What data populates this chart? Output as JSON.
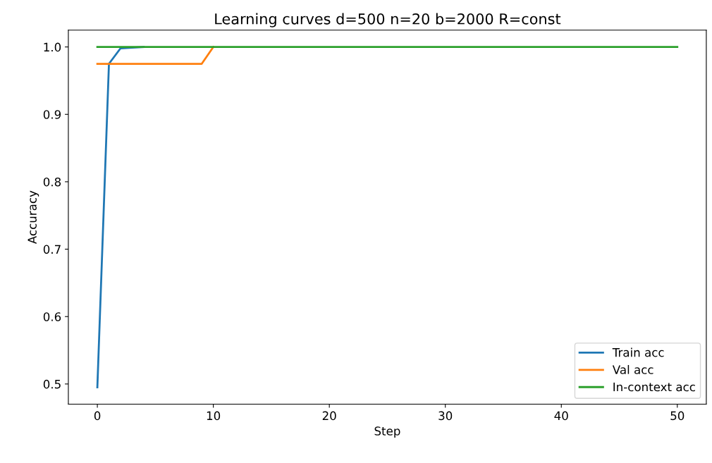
{
  "chart_data": {
    "type": "line",
    "title": "Learning curves d=500 n=20 b=2000 R=const",
    "xlabel": "Step",
    "ylabel": "Accuracy",
    "x": [
      0,
      1,
      2,
      3,
      4,
      5,
      6,
      7,
      8,
      9,
      10,
      11,
      12,
      13,
      14,
      15,
      16,
      17,
      18,
      19,
      20,
      21,
      22,
      23,
      24,
      25,
      26,
      27,
      28,
      29,
      30,
      31,
      32,
      33,
      34,
      35,
      36,
      37,
      38,
      39,
      40,
      41,
      42,
      43,
      44,
      45,
      46,
      47,
      48,
      49,
      50
    ],
    "series": [
      {
        "name": "Train acc",
        "color": "#1f77b4",
        "values": [
          0.495,
          0.975,
          0.998,
          0.999,
          1.0,
          null,
          null,
          null,
          null,
          null,
          null,
          null,
          null,
          null,
          null,
          null,
          null,
          null,
          null,
          null,
          null,
          null,
          null,
          null,
          null,
          null,
          null,
          null,
          null,
          null,
          null,
          null,
          null,
          null,
          null,
          null,
          null,
          null,
          null,
          null,
          null,
          null,
          null,
          null,
          null,
          null,
          null,
          null,
          null,
          null,
          null
        ]
      },
      {
        "name": "Val acc",
        "color": "#ff7f0e",
        "values": [
          0.975,
          0.975,
          0.975,
          0.975,
          0.975,
          0.975,
          0.975,
          0.975,
          0.975,
          0.975,
          1.0,
          null,
          null,
          null,
          null,
          null,
          null,
          null,
          null,
          null,
          null,
          null,
          null,
          null,
          null,
          null,
          null,
          null,
          null,
          null,
          null,
          null,
          null,
          null,
          null,
          null,
          null,
          null,
          null,
          null,
          null,
          null,
          null,
          null,
          null,
          null,
          null,
          null,
          null,
          null,
          null
        ]
      },
      {
        "name": "In-context acc",
        "color": "#2ca02c",
        "values": [
          1.0,
          1.0,
          1.0,
          1.0,
          1.0,
          1.0,
          1.0,
          1.0,
          1.0,
          1.0,
          1.0,
          1.0,
          1.0,
          1.0,
          1.0,
          1.0,
          1.0,
          1.0,
          1.0,
          1.0,
          1.0,
          1.0,
          1.0,
          1.0,
          1.0,
          1.0,
          1.0,
          1.0,
          1.0,
          1.0,
          1.0,
          1.0,
          1.0,
          1.0,
          1.0,
          1.0,
          1.0,
          1.0,
          1.0,
          1.0,
          1.0,
          1.0,
          1.0,
          1.0,
          1.0,
          1.0,
          1.0,
          1.0,
          1.0,
          1.0,
          1.0
        ]
      }
    ],
    "xlim": [
      -2.5,
      52.5
    ],
    "xticks": [
      0,
      10,
      20,
      30,
      40,
      50
    ],
    "ylim": [
      0.47,
      1.025
    ],
    "yticks": [
      {
        "value": 0.5,
        "label": "0.5"
      },
      {
        "value": 0.6,
        "label": "0.6"
      },
      {
        "value": 0.7,
        "label": "0.7"
      },
      {
        "value": 0.8,
        "label": "0.8"
      },
      {
        "value": 0.9,
        "label": "0.9"
      },
      {
        "value": 1.0,
        "label": "1.0"
      }
    ],
    "grid": false,
    "legend": "bottom right",
    "marker": "none",
    "line_style": "solid"
  }
}
